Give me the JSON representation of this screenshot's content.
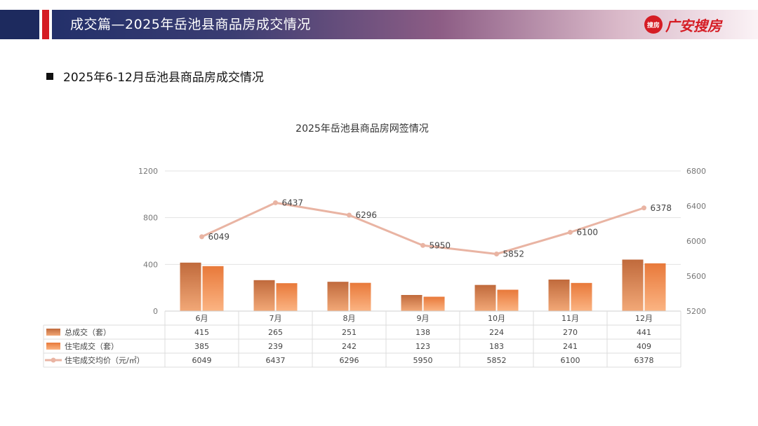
{
  "header": {
    "title": "成交篇—2025年岳池县商品房成交情况",
    "logo_badge": "搜房",
    "logo_text": "广安搜房"
  },
  "section": {
    "subtitle": "2025年6-12月岳池县商品房成交情况"
  },
  "colors": {
    "navy": "#1d2a5e",
    "red": "#d51c24",
    "bar_total": "#c8693a",
    "bar_residential": "#f08a4b",
    "line_price": "#e9b4a3"
  },
  "chart_data": {
    "type": "bar",
    "title": "2025年岳池县商品房网签情况",
    "categories": [
      "6月",
      "7月",
      "8月",
      "9月",
      "10月",
      "11月",
      "12月"
    ],
    "series": [
      {
        "name": "总成交（套）",
        "type": "bar",
        "axis": "left",
        "values": [
          415,
          265,
          251,
          138,
          224,
          270,
          441
        ]
      },
      {
        "name": "住宅成交（套）",
        "type": "bar",
        "axis": "left",
        "values": [
          385,
          239,
          242,
          123,
          183,
          241,
          409
        ]
      },
      {
        "name": "住宅成交均价（元/㎡）",
        "type": "line",
        "axis": "right",
        "values": [
          6049,
          6437,
          6296,
          5950,
          5852,
          6100,
          6378
        ]
      }
    ],
    "y_left": {
      "min": 0,
      "max": 1200,
      "ticks": [
        0,
        400,
        800,
        1200
      ]
    },
    "y_right": {
      "min": 5200,
      "max": 6800,
      "ticks": [
        5200,
        5600,
        6000,
        6400,
        6800
      ]
    },
    "grid": true,
    "legend": "data-table"
  }
}
